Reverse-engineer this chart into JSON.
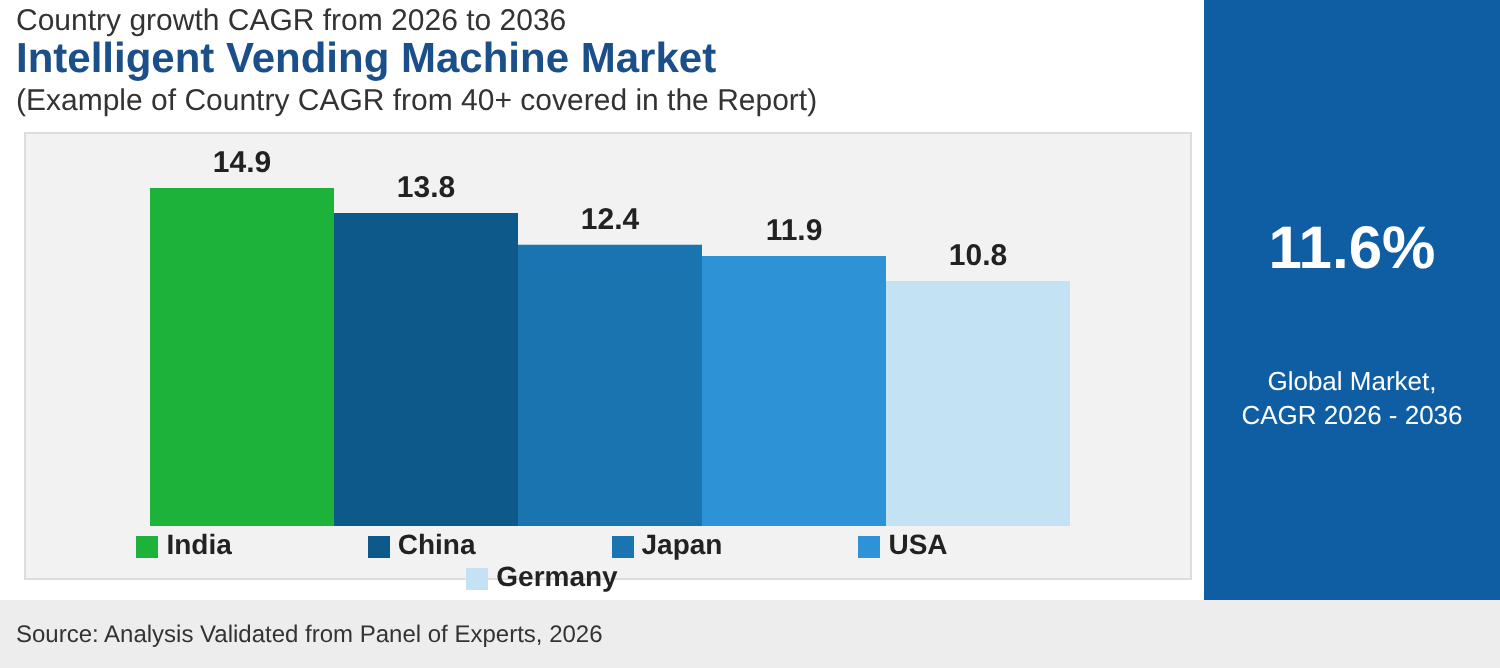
{
  "chart_data": {
    "type": "bar",
    "title": "Intelligent Vending Machine Market",
    "subtitle": "(Example of Country CAGR from 40+ covered in the Report)",
    "categories": [
      null
    ],
    "series": [
      {
        "name": "India",
        "color": "#1db33b",
        "values": [
          14.9
        ]
      },
      {
        "name": "China",
        "color": "#0d5a8a",
        "values": [
          13.8
        ]
      },
      {
        "name": "Japan",
        "color": "#1a74b0",
        "values": [
          12.4
        ]
      },
      {
        "name": "USA",
        "color": "#2e93d6",
        "values": [
          11.9
        ]
      },
      {
        "name": "Germany",
        "color": "#c3e2f4",
        "values": [
          10.8
        ]
      }
    ],
    "data_labels": true,
    "legend": "bottom",
    "annotations": [
      "Country growth CAGR from 2026 to 2036",
      "11.6%",
      "Global Market,\nCAGR 2026 - 2036",
      "Source: Analysis Validated from Panel of Experts, 2026"
    ]
  }
}
